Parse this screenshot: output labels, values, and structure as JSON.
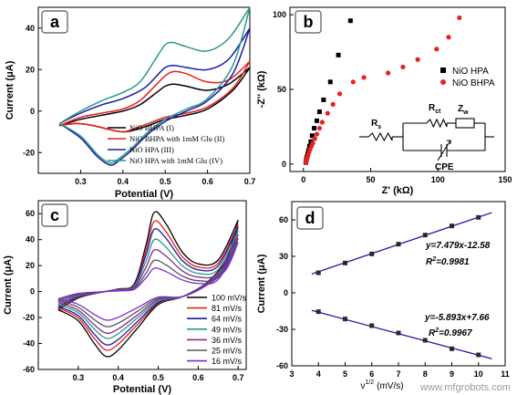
{
  "chart_data": [
    {
      "panel": "a",
      "type": "line",
      "xlabel": "Potential (V)",
      "ylabel": "Current (μA)",
      "xlim": [
        0.2,
        0.7
      ],
      "ylim": [
        -30,
        50
      ],
      "xticks": [
        0.3,
        0.4,
        0.5,
        0.6,
        0.7
      ],
      "yticks": [
        -20,
        0,
        20,
        40
      ],
      "legend_position": "bottom",
      "series": [
        {
          "name": "NiO BHPA (I)",
          "color": "#000000",
          "forward": [
            [
              0.25,
              -7
            ],
            [
              0.3,
              -4
            ],
            [
              0.35,
              -2
            ],
            [
              0.4,
              0
            ],
            [
              0.44,
              3
            ],
            [
              0.48,
              9
            ],
            [
              0.5,
              12
            ],
            [
              0.52,
              13
            ],
            [
              0.55,
              12
            ],
            [
              0.6,
              10
            ],
            [
              0.65,
              13
            ],
            [
              0.7,
              21
            ]
          ],
          "reverse": [
            [
              0.7,
              21
            ],
            [
              0.66,
              10
            ],
            [
              0.6,
              1
            ],
            [
              0.55,
              -2
            ],
            [
              0.5,
              -4
            ],
            [
              0.46,
              -7
            ],
            [
              0.42,
              -9.5
            ],
            [
              0.4,
              -10
            ],
            [
              0.37,
              -9
            ],
            [
              0.33,
              -7
            ],
            [
              0.29,
              -6
            ],
            [
              0.25,
              -7
            ]
          ]
        },
        {
          "name": "NiO BHPA with 1mM Glu (II)",
          "color": "#e8211e",
          "forward": [
            [
              0.25,
              -7
            ],
            [
              0.3,
              -3
            ],
            [
              0.35,
              -1
            ],
            [
              0.4,
              1
            ],
            [
              0.44,
              5
            ],
            [
              0.48,
              13
            ],
            [
              0.5,
              17
            ],
            [
              0.52,
              19
            ],
            [
              0.55,
              18
            ],
            [
              0.6,
              14
            ],
            [
              0.65,
              15
            ],
            [
              0.7,
              24
            ]
          ],
          "reverse": [
            [
              0.7,
              24
            ],
            [
              0.66,
              11
            ],
            [
              0.6,
              2
            ],
            [
              0.55,
              -1
            ],
            [
              0.5,
              -3
            ],
            [
              0.46,
              -6
            ],
            [
              0.42,
              -9
            ],
            [
              0.4,
              -10
            ],
            [
              0.37,
              -9
            ],
            [
              0.33,
              -7
            ],
            [
              0.29,
              -6
            ],
            [
              0.25,
              -7
            ]
          ]
        },
        {
          "name": "NiO HPA (III)",
          "color": "#1a1aa6",
          "forward": [
            [
              0.25,
              -6
            ],
            [
              0.3,
              -1
            ],
            [
              0.35,
              3
            ],
            [
              0.4,
              6
            ],
            [
              0.45,
              11
            ],
            [
              0.48,
              17
            ],
            [
              0.5,
              21
            ],
            [
              0.52,
              22
            ],
            [
              0.55,
              21
            ],
            [
              0.6,
              20
            ],
            [
              0.65,
              25
            ],
            [
              0.7,
              40
            ]
          ],
          "reverse": [
            [
              0.7,
              40
            ],
            [
              0.66,
              18
            ],
            [
              0.6,
              5
            ],
            [
              0.55,
              0
            ],
            [
              0.5,
              -5
            ],
            [
              0.46,
              -11
            ],
            [
              0.42,
              -19
            ],
            [
              0.39,
              -24
            ],
            [
              0.37,
              -26
            ],
            [
              0.34,
              -22
            ],
            [
              0.3,
              -13
            ],
            [
              0.25,
              -6
            ]
          ]
        },
        {
          "name": "NiO HPA with 1mM Glu (IV)",
          "color": "#2a9a8a",
          "forward": [
            [
              0.25,
              -6
            ],
            [
              0.3,
              0
            ],
            [
              0.35,
              5
            ],
            [
              0.4,
              9
            ],
            [
              0.44,
              14
            ],
            [
              0.48,
              26
            ],
            [
              0.5,
              32
            ],
            [
              0.52,
              33
            ],
            [
              0.55,
              31
            ],
            [
              0.6,
              29
            ],
            [
              0.65,
              35
            ],
            [
              0.7,
              50
            ]
          ],
          "reverse": [
            [
              0.7,
              50
            ],
            [
              0.66,
              22
            ],
            [
              0.6,
              6
            ],
            [
              0.55,
              1
            ],
            [
              0.5,
              -4
            ],
            [
              0.46,
              -10
            ],
            [
              0.42,
              -18
            ],
            [
              0.39,
              -23
            ],
            [
              0.37,
              -25
            ],
            [
              0.34,
              -21
            ],
            [
              0.3,
              -12
            ],
            [
              0.25,
              -6
            ]
          ]
        }
      ]
    },
    {
      "panel": "b",
      "type": "scatter",
      "xlabel": "Z' (kΩ)",
      "ylabel": "-Z'' (kΩ)",
      "xlim": [
        -10,
        150
      ],
      "ylim": [
        -5,
        105
      ],
      "xticks": [
        0,
        50,
        100,
        150
      ],
      "yticks": [
        0,
        50,
        100
      ],
      "legend_position": "right",
      "series": [
        {
          "name": "NiO HPA",
          "color": "#000000",
          "marker": "square",
          "points": [
            [
              35,
              96
            ],
            [
              26,
              73
            ],
            [
              20,
              55
            ],
            [
              15,
              43
            ],
            [
              12,
              35
            ],
            [
              10,
              29
            ],
            [
              8,
              24
            ],
            [
              6.5,
              19
            ],
            [
              5.5,
              15
            ],
            [
              4.5,
              12
            ],
            [
              3.8,
              9
            ],
            [
              3.2,
              7
            ],
            [
              2.7,
              5
            ],
            [
              2.3,
              3.5
            ],
            [
              2,
              2
            ],
            [
              1.8,
              1
            ]
          ]
        },
        {
          "name": "NiO BHPA",
          "color": "#e8211e",
          "marker": "circle",
          "points": [
            [
              116,
              98
            ],
            [
              108,
              85
            ],
            [
              99,
              77
            ],
            [
              85,
              70
            ],
            [
              74,
              65
            ],
            [
              63,
              61
            ],
            [
              45,
              58
            ],
            [
              37,
              55
            ],
            [
              27,
              47
            ],
            [
              22,
              40
            ],
            [
              18,
              34
            ],
            [
              14,
              28
            ],
            [
              12,
              24
            ],
            [
              10,
              20
            ],
            [
              8.5,
              17
            ],
            [
              7,
              14
            ],
            [
              6,
              12
            ],
            [
              5,
              10
            ],
            [
              4.2,
              8
            ],
            [
              3.5,
              6
            ],
            [
              3,
              4.5
            ],
            [
              2.5,
              3
            ],
            [
              2.1,
              2
            ],
            [
              1.8,
              1
            ]
          ]
        }
      ],
      "inset": {
        "r_s": "R",
        "r_s_sub": "s",
        "r_ct": "R",
        "r_ct_sub": "ct",
        "z_w": "Z",
        "z_w_sub": "w",
        "cpe": "CPE"
      }
    },
    {
      "panel": "c",
      "type": "line",
      "xlabel": "Potential (V)",
      "ylabel": "Current (μA)",
      "xlim": [
        0.2,
        0.72
      ],
      "ylim": [
        -60,
        70
      ],
      "xticks": [
        0.3,
        0.4,
        0.5,
        0.6,
        0.7
      ],
      "yticks": [
        -60,
        -40,
        -20,
        0,
        20,
        40,
        60
      ],
      "legend_position": "right",
      "peak_values": [
        61,
        54,
        48,
        40,
        32,
        24,
        18
      ],
      "min_values": [
        -50,
        -45,
        -41,
        -36,
        -32,
        -27,
        -22
      ],
      "end_values": [
        55,
        52,
        50,
        47,
        44,
        41,
        38
      ],
      "series": [
        {
          "name": "100 mV/s",
          "color": "#000000"
        },
        {
          "name": "81 mV/s",
          "color": "#e8211e"
        },
        {
          "name": "64 mV/s",
          "color": "#1a1aa6"
        },
        {
          "name": "49 mV/s",
          "color": "#2a9a8a"
        },
        {
          "name": "36 mV/s",
          "color": "#8b2a8b"
        },
        {
          "name": "25 mV/s",
          "color": "#555555"
        },
        {
          "name": "16 mV/s",
          "color": "#7b2ad6"
        }
      ]
    },
    {
      "panel": "d",
      "type": "scatter",
      "xlabel": "ν",
      "xlabel_sup": "1/2",
      "xlabel_unit": "(mV/s)",
      "ylabel": "Current (μA)",
      "xlim": [
        3,
        11
      ],
      "ylim": [
        -60,
        75
      ],
      "xticks": [
        3,
        4,
        5,
        6,
        7,
        8,
        9,
        10,
        11
      ],
      "yticks": [
        -60,
        -30,
        0,
        30,
        60
      ],
      "series": [
        {
          "name": "",
          "color": "#1a1aa6",
          "x": [
            4,
            5,
            6,
            7,
            8,
            9,
            10
          ],
          "y": [
            16.5,
            24.5,
            32,
            40,
            47.5,
            55,
            62
          ],
          "fit_slope": 7.479,
          "fit_intercept": -12.58
        },
        {
          "name": "",
          "color": "#1a1aa6",
          "x": [
            4,
            5,
            6,
            7,
            8,
            9,
            10
          ],
          "y": [
            -15.5,
            -21.5,
            -27,
            -33,
            -39,
            -46,
            -51
          ],
          "fit_slope": -5.893,
          "fit_intercept": 7.66
        }
      ],
      "annotations": [
        "y=7.479x-12.58",
        "R",
        "2",
        "=0.9981",
        "y=-5.893x+7.66",
        "R",
        "2",
        "=0.9967"
      ]
    }
  ],
  "watermark": "www.mfgrobots.com",
  "panel_labels": [
    "a",
    "b",
    "c",
    "d"
  ]
}
